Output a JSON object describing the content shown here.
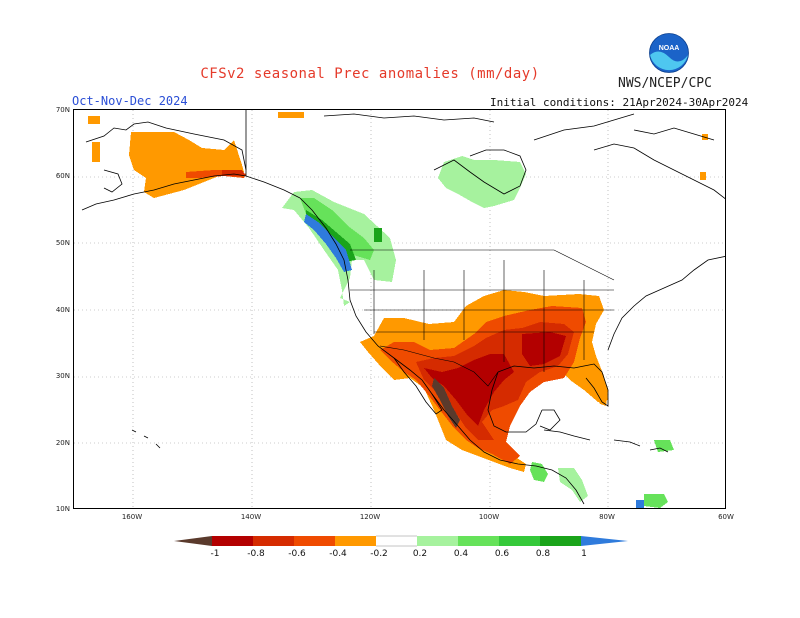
{
  "header": {
    "title": "CFSv2 seasonal Prec anomalies (mm/day)",
    "org": "NWS/NCEP/CPC",
    "season": "Oct-Nov-Dec 2024",
    "initial_conditions": "Initial conditions: 21Apr2024-30Apr2024",
    "logo_text": "NOAA"
  },
  "axes": {
    "lat_labels": [
      "70N",
      "60N",
      "50N",
      "40N",
      "30N",
      "20N",
      "10N"
    ],
    "lon_labels": [
      "160W",
      "140W",
      "120W",
      "100W",
      "80W",
      "60W"
    ]
  },
  "legend": {
    "labels": [
      "-1",
      "-0.8",
      "-0.6",
      "-0.4",
      "-0.2",
      "0.2",
      "0.4",
      "0.6",
      "0.8",
      "1"
    ],
    "colors": {
      "below_min": "#5a3a2c",
      "c1": "#b30000",
      "c2": "#d52b00",
      "c3": "#ef4b00",
      "c4": "#ff9900",
      "neutral": "#ffffff",
      "c5": "#a6f29e",
      "c6": "#66e25a",
      "c7": "#35c93a",
      "c8": "#1aa41a",
      "above_max": "#2f7bdc"
    }
  },
  "map": {
    "lat_range": [
      10,
      70
    ],
    "lon_range": [
      "190W",
      "60W"
    ],
    "anomaly_regions": [
      {
        "region": "Alaska interior",
        "category": "c4"
      },
      {
        "region": "Alaska south coast",
        "category": "c3"
      },
      {
        "region": "Pacific Northwest coast",
        "category": "above_max"
      },
      {
        "region": "British Columbia",
        "category": "c6"
      },
      {
        "region": "Hudson Bay area",
        "category": "c5"
      },
      {
        "region": "Southwest US",
        "category": "c4"
      },
      {
        "region": "Texas & Gulf Coast",
        "category": "c2"
      },
      {
        "region": "Northern Mexico",
        "category": "c1"
      },
      {
        "region": "Baja California",
        "category": "below_min"
      },
      {
        "region": "Florida",
        "category": "c4"
      },
      {
        "region": "Central America",
        "category": "c5"
      }
    ]
  }
}
